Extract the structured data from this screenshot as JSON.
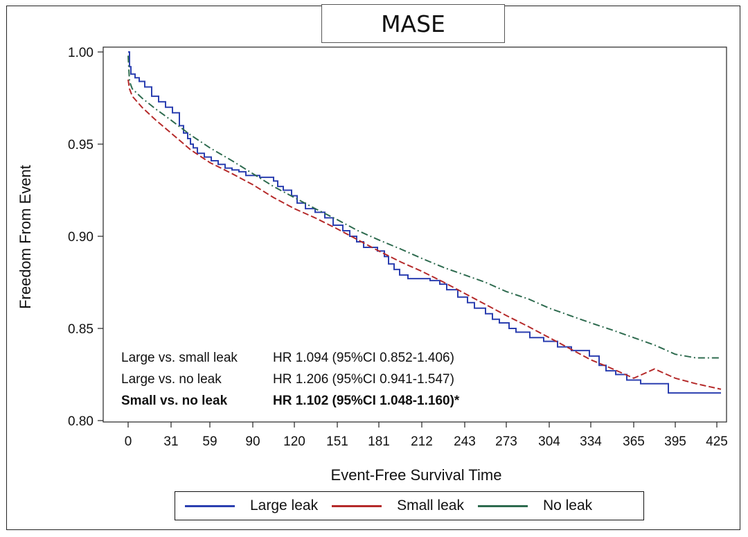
{
  "chart_data": {
    "type": "line",
    "title": "MASE",
    "xlabel": "Event-Free Survival Time",
    "ylabel": "Freedom From Event",
    "xlim": [
      -18,
      432
    ],
    "ylim": [
      0.8,
      1.0
    ],
    "x_ticks": [
      0,
      31,
      59,
      90,
      120,
      151,
      181,
      212,
      243,
      273,
      304,
      334,
      365,
      395,
      425
    ],
    "y_ticks": [
      "1.00",
      "0.95",
      "0.90",
      "0.85",
      "0.80"
    ],
    "y_tick_values": [
      1.0,
      0.95,
      0.9,
      0.85,
      0.8
    ],
    "grid": false,
    "legend_position": "bottom",
    "series": [
      {
        "name": "Large leak",
        "color": "#2b3fb0",
        "style": "step",
        "x": [
          0,
          1,
          2,
          5,
          8,
          12,
          17,
          22,
          27,
          32,
          37,
          40,
          43,
          45,
          47,
          50,
          55,
          60,
          65,
          70,
          75,
          80,
          85,
          95,
          105,
          108,
          112,
          118,
          122,
          128,
          135,
          142,
          148,
          155,
          160,
          165,
          170,
          180,
          185,
          188,
          192,
          196,
          202,
          210,
          218,
          225,
          230,
          238,
          245,
          250,
          258,
          263,
          268,
          275,
          280,
          290,
          300,
          310,
          320,
          333,
          340,
          345,
          352,
          360,
          370,
          380,
          390,
          428
        ],
        "y": [
          1.0,
          0.992,
          0.988,
          0.986,
          0.984,
          0.981,
          0.976,
          0.973,
          0.97,
          0.967,
          0.96,
          0.956,
          0.953,
          0.95,
          0.948,
          0.945,
          0.943,
          0.941,
          0.939,
          0.937,
          0.936,
          0.935,
          0.933,
          0.932,
          0.93,
          0.927,
          0.925,
          0.922,
          0.918,
          0.915,
          0.913,
          0.91,
          0.906,
          0.903,
          0.9,
          0.897,
          0.894,
          0.892,
          0.889,
          0.885,
          0.882,
          0.879,
          0.877,
          0.877,
          0.876,
          0.874,
          0.871,
          0.867,
          0.864,
          0.861,
          0.858,
          0.855,
          0.853,
          0.85,
          0.848,
          0.845,
          0.843,
          0.84,
          0.838,
          0.835,
          0.83,
          0.827,
          0.825,
          0.822,
          0.82,
          0.82,
          0.815,
          0.815
        ]
      },
      {
        "name": "Small leak",
        "color": "#b52a2a",
        "style": "dash",
        "x": [
          0,
          1,
          3,
          10,
          20,
          31,
          45,
          59,
          75,
          90,
          105,
          120,
          135,
          151,
          166,
          181,
          197,
          212,
          228,
          243,
          258,
          273,
          289,
          304,
          319,
          334,
          350,
          365,
          380,
          395,
          410,
          428
        ],
        "y": [
          0.985,
          0.98,
          0.976,
          0.97,
          0.963,
          0.956,
          0.947,
          0.94,
          0.934,
          0.928,
          0.921,
          0.915,
          0.91,
          0.904,
          0.898,
          0.892,
          0.886,
          0.881,
          0.875,
          0.869,
          0.863,
          0.857,
          0.851,
          0.845,
          0.839,
          0.833,
          0.828,
          0.823,
          0.828,
          0.823,
          0.82,
          0.817
        ]
      },
      {
        "name": "No leak",
        "color": "#2e6b4f",
        "style": "dashdot",
        "x": [
          0,
          1,
          3,
          10,
          20,
          31,
          45,
          59,
          75,
          90,
          105,
          120,
          135,
          151,
          166,
          181,
          197,
          212,
          228,
          243,
          258,
          273,
          289,
          304,
          319,
          334,
          350,
          365,
          380,
          395,
          410,
          428
        ],
        "y": [
          0.998,
          0.984,
          0.98,
          0.975,
          0.969,
          0.963,
          0.955,
          0.948,
          0.941,
          0.934,
          0.927,
          0.921,
          0.915,
          0.909,
          0.903,
          0.898,
          0.893,
          0.888,
          0.883,
          0.879,
          0.875,
          0.87,
          0.866,
          0.861,
          0.857,
          0.853,
          0.849,
          0.845,
          0.841,
          0.836,
          0.834,
          0.834
        ]
      }
    ],
    "annotations": [
      {
        "label": "Large vs. small leak",
        "value": "HR 1.094 (95%CI 0.852-1.406)",
        "bold": false
      },
      {
        "label": "Large vs. no leak",
        "value": "HR 1.206 (95%CI 0.941-1.547)",
        "bold": false
      },
      {
        "label": "Small vs. no leak",
        "value": "HR 1.102 (95%CI 1.048-1.160)*",
        "bold": true
      }
    ]
  }
}
